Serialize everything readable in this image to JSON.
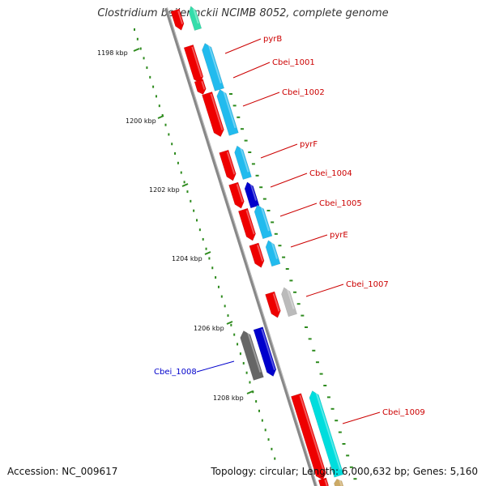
{
  "title": "Clostridium beijerinckii NCIMB 8052, complete genome",
  "footer": {
    "accession": "Accession: NC_009617",
    "summary": "Topology: circular; Length: 6,000,632 bp; Genes: 5,160"
  },
  "colors": {
    "backbone": "#888888",
    "forward_cds": "#ee0000",
    "reverse_cds": "#22bbee",
    "highlight_gene": "#0000cc",
    "gray_gene": "#666666",
    "light_gray_gene": "#bbbbbb",
    "tick": "#2e8b1e",
    "label_red": "#cc0000",
    "label_blue": "#0000cc"
  },
  "scale_ticks": [
    {
      "label": "1198 kbp"
    },
    {
      "label": "1200 kbp"
    },
    {
      "label": "1202 kbp"
    },
    {
      "label": "1204 kbp"
    },
    {
      "label": "1206 kbp"
    },
    {
      "label": "1208 kbp"
    }
  ],
  "gene_labels": [
    {
      "text": "pyrB",
      "color": "red"
    },
    {
      "text": "Cbei_1001",
      "color": "red"
    },
    {
      "text": "Cbei_1002",
      "color": "red"
    },
    {
      "text": "pyrF",
      "color": "red"
    },
    {
      "text": "Cbei_1004",
      "color": "red"
    },
    {
      "text": "Cbei_1005",
      "color": "red"
    },
    {
      "text": "pyrE",
      "color": "red"
    },
    {
      "text": "Cbei_1007",
      "color": "red"
    },
    {
      "text": "Cbei_1008",
      "color": "blue"
    },
    {
      "text": "Cbei_1009",
      "color": "red"
    }
  ]
}
